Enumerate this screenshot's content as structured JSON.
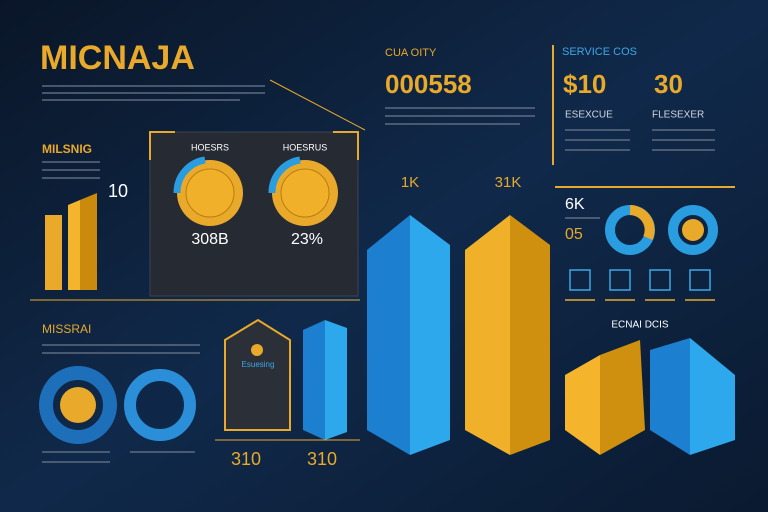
{
  "header": {
    "title": "MICNAJA"
  },
  "top_stat": {
    "label": "CUA OITY",
    "value": "000558"
  },
  "service": {
    "label": "SERVICE COS",
    "values": [
      "$10",
      "30"
    ],
    "captions": [
      "ESEXCUE",
      "FLESEXER"
    ]
  },
  "left_panel": {
    "label": "MILSNIG",
    "value": "10"
  },
  "donut_panel": {
    "headers": [
      "HOESRS",
      "HOESRUS"
    ],
    "values": [
      "308B",
      "23%"
    ]
  },
  "bar_labels": [
    "1K",
    "31K"
  ],
  "right_panel": {
    "value": "6K",
    "sub": "05",
    "caption": "ECNAI DCIS"
  },
  "bottom_left": {
    "label": "MISSRAI",
    "card": "Esuesing",
    "values": [
      "310",
      "310"
    ]
  }
}
